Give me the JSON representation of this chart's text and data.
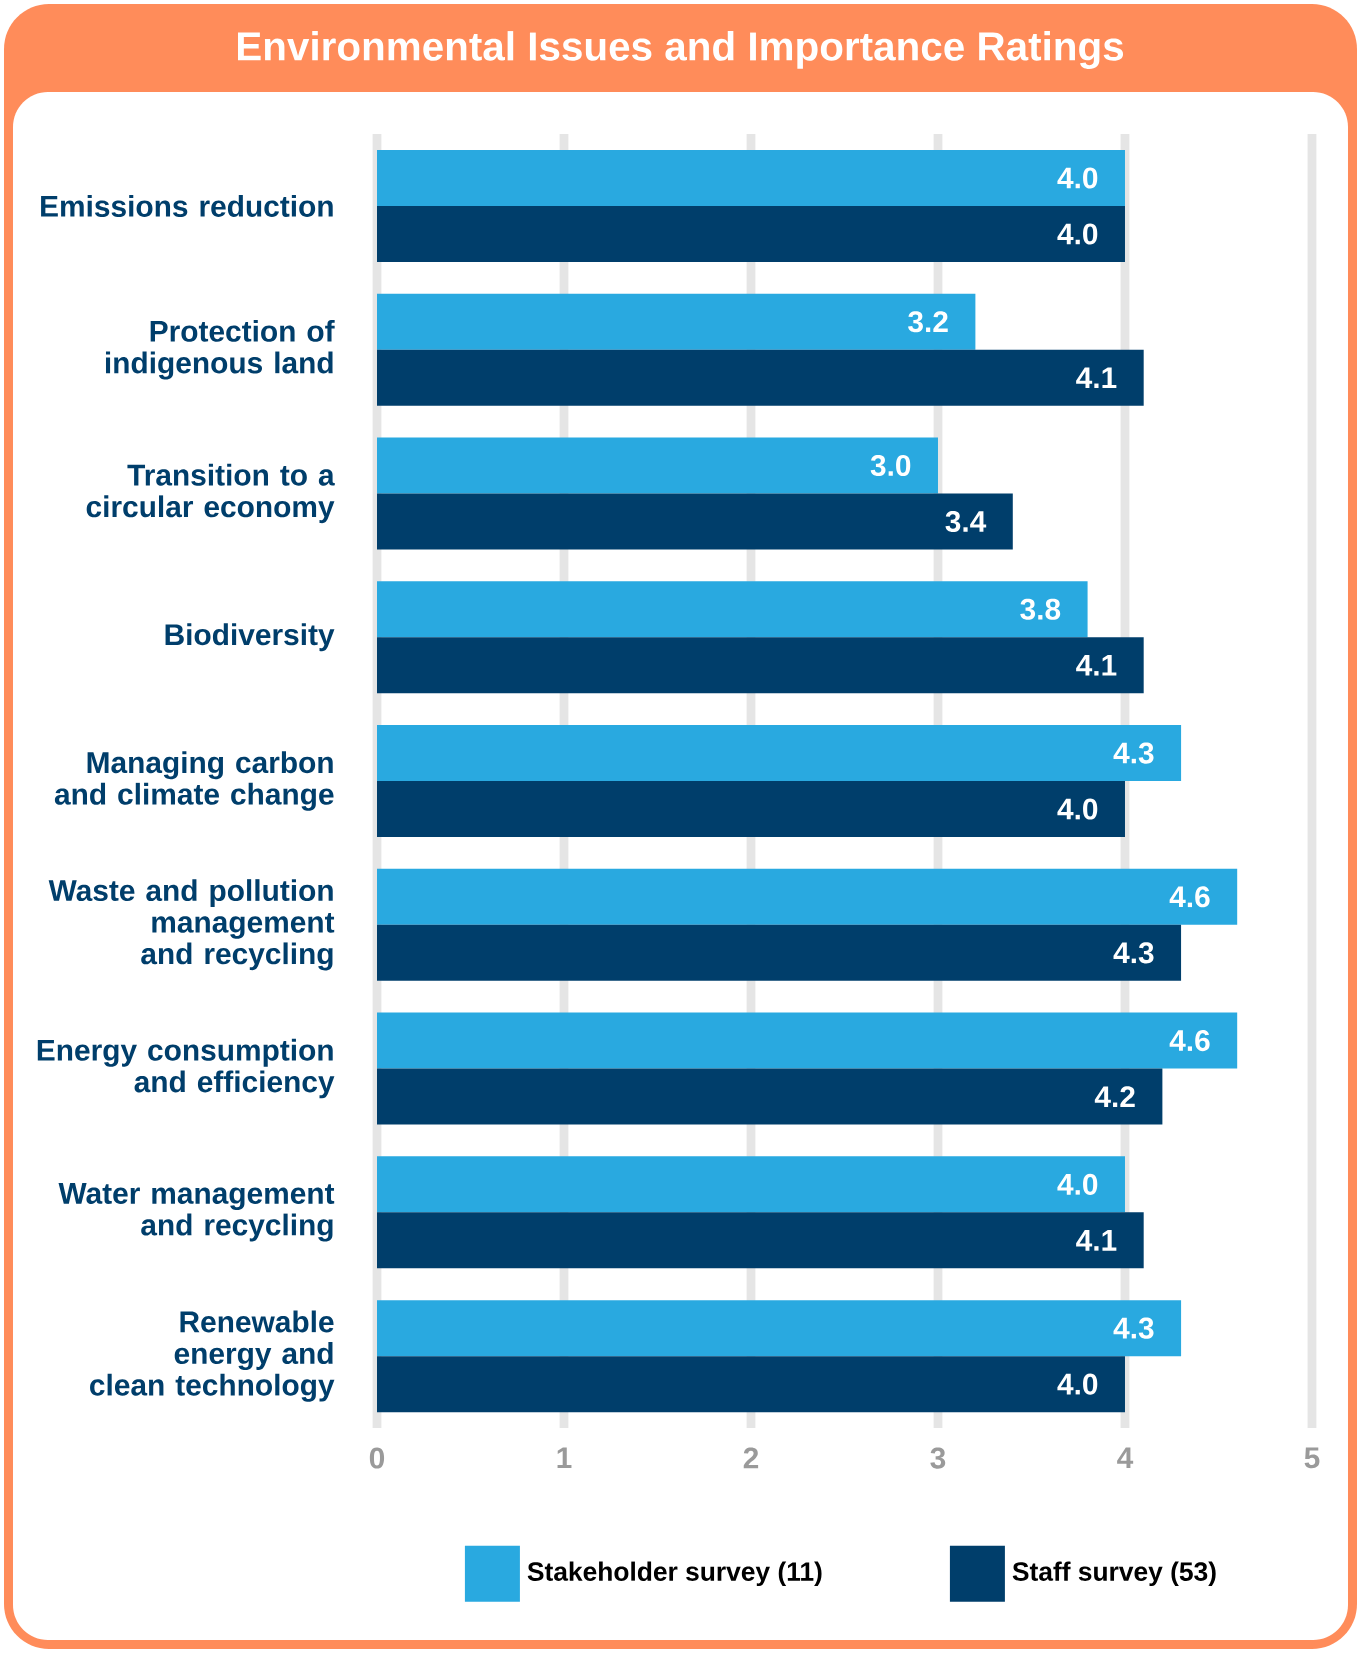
{
  "chart_data": {
    "type": "bar",
    "orientation": "horizontal",
    "title": "Environmental Issues and Importance Ratings",
    "categories": [
      "Emissions reduction",
      "Protection of indigenous land",
      "Transition to a circular economy",
      "Biodiversity",
      "Managing carbon and climate change",
      "Waste and pollution management and recycling",
      "Energy consumption and efficiency",
      "Water management and recycling",
      "Renewable energy and clean technology"
    ],
    "series": [
      {
        "name": "Stakeholder survey (11)",
        "color": "#29a9e0",
        "values": [
          4.0,
          3.2,
          3.0,
          3.8,
          4.3,
          4.6,
          4.6,
          4.0,
          4.3
        ],
        "value_labels": [
          "4.0",
          "3.2",
          "3.0",
          "3.8",
          "4.3",
          "4.6",
          "4.6",
          "4.0",
          "4.3"
        ]
      },
      {
        "name": "Staff survey (53)",
        "color": "#003e6b",
        "values": [
          4.0,
          4.1,
          3.4,
          4.1,
          4.0,
          4.3,
          4.2,
          4.1,
          4.0
        ],
        "value_labels": [
          "4.0",
          "4.1",
          "3.4",
          "4.1",
          "4.0",
          "4.3",
          "4.2",
          "4.1",
          "4.0"
        ]
      }
    ],
    "xlim": [
      0,
      5
    ],
    "xticks": [
      0,
      1,
      2,
      3,
      4,
      5
    ],
    "grid": "x",
    "legend": "bottom"
  }
}
